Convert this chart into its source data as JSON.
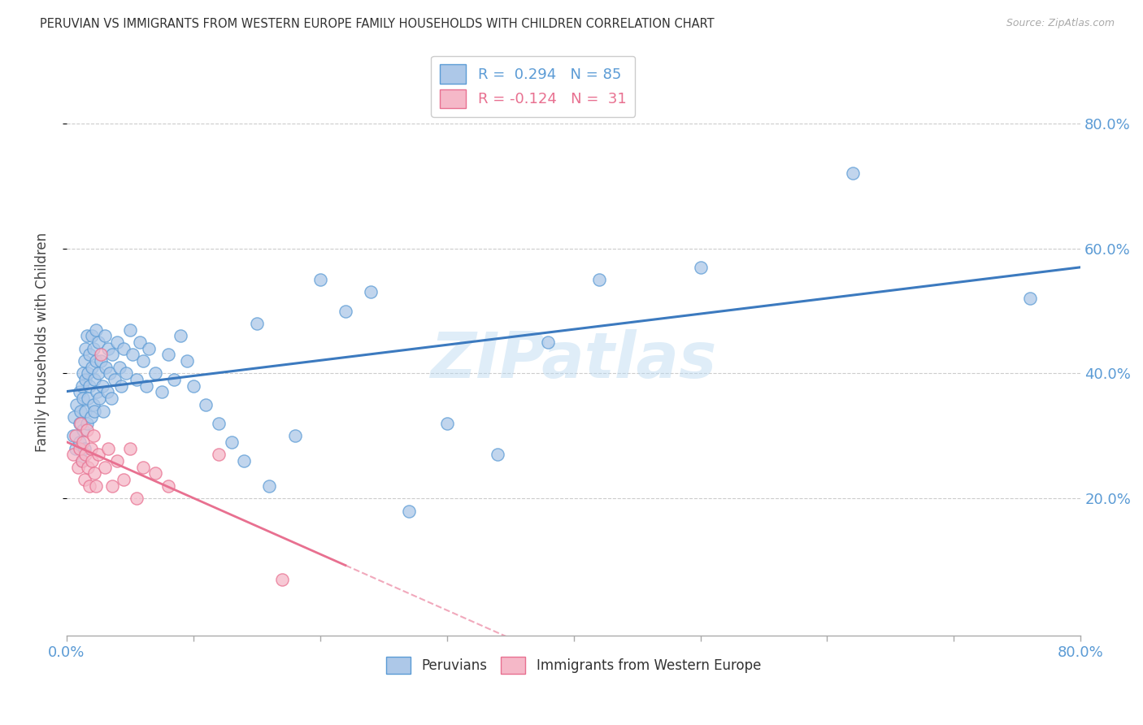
{
  "title": "PERUVIAN VS IMMIGRANTS FROM WESTERN EUROPE FAMILY HOUSEHOLDS WITH CHILDREN CORRELATION CHART",
  "source": "Source: ZipAtlas.com",
  "ylabel": "Family Households with Children",
  "xlim": [
    0,
    0.8
  ],
  "ylim": [
    -0.02,
    0.92
  ],
  "yticks": [
    0.2,
    0.4,
    0.6,
    0.8
  ],
  "ytick_labels": [
    "20.0%",
    "40.0%",
    "60.0%",
    "80.0%"
  ],
  "background_color": "#ffffff",
  "peru_color": "#adc8e8",
  "peru_edge": "#5b9bd5",
  "peru_line": "#3c7abf",
  "west_color": "#f5b8c8",
  "west_edge": "#e87090",
  "west_line": "#e87090",
  "peru_R": 0.294,
  "peru_N": 85,
  "west_R": -0.124,
  "west_N": 31,
  "peru_x": [
    0.005,
    0.006,
    0.007,
    0.008,
    0.01,
    0.01,
    0.01,
    0.011,
    0.012,
    0.012,
    0.013,
    0.013,
    0.013,
    0.014,
    0.014,
    0.015,
    0.015,
    0.015,
    0.016,
    0.016,
    0.017,
    0.017,
    0.018,
    0.018,
    0.019,
    0.02,
    0.02,
    0.021,
    0.021,
    0.022,
    0.022,
    0.023,
    0.023,
    0.024,
    0.025,
    0.025,
    0.026,
    0.027,
    0.028,
    0.029,
    0.03,
    0.031,
    0.032,
    0.033,
    0.034,
    0.035,
    0.036,
    0.038,
    0.04,
    0.042,
    0.043,
    0.045,
    0.047,
    0.05,
    0.052,
    0.055,
    0.058,
    0.06,
    0.063,
    0.065,
    0.07,
    0.075,
    0.08,
    0.085,
    0.09,
    0.095,
    0.1,
    0.11,
    0.12,
    0.13,
    0.14,
    0.15,
    0.16,
    0.18,
    0.2,
    0.22,
    0.24,
    0.27,
    0.3,
    0.34,
    0.38,
    0.42,
    0.5,
    0.62,
    0.76
  ],
  "peru_y": [
    0.3,
    0.33,
    0.28,
    0.35,
    0.32,
    0.37,
    0.29,
    0.34,
    0.38,
    0.26,
    0.4,
    0.36,
    0.31,
    0.42,
    0.28,
    0.44,
    0.39,
    0.34,
    0.46,
    0.32,
    0.4,
    0.36,
    0.43,
    0.38,
    0.33,
    0.46,
    0.41,
    0.35,
    0.44,
    0.39,
    0.34,
    0.47,
    0.42,
    0.37,
    0.45,
    0.4,
    0.36,
    0.42,
    0.38,
    0.34,
    0.46,
    0.41,
    0.37,
    0.44,
    0.4,
    0.36,
    0.43,
    0.39,
    0.45,
    0.41,
    0.38,
    0.44,
    0.4,
    0.47,
    0.43,
    0.39,
    0.45,
    0.42,
    0.38,
    0.44,
    0.4,
    0.37,
    0.43,
    0.39,
    0.46,
    0.42,
    0.38,
    0.35,
    0.32,
    0.29,
    0.26,
    0.48,
    0.22,
    0.3,
    0.55,
    0.5,
    0.53,
    0.18,
    0.32,
    0.27,
    0.45,
    0.55,
    0.57,
    0.72,
    0.52
  ],
  "west_x": [
    0.005,
    0.007,
    0.009,
    0.01,
    0.011,
    0.012,
    0.013,
    0.014,
    0.015,
    0.016,
    0.017,
    0.018,
    0.019,
    0.02,
    0.021,
    0.022,
    0.023,
    0.025,
    0.027,
    0.03,
    0.033,
    0.036,
    0.04,
    0.045,
    0.05,
    0.055,
    0.06,
    0.07,
    0.08,
    0.12,
    0.17
  ],
  "west_y": [
    0.27,
    0.3,
    0.25,
    0.28,
    0.32,
    0.26,
    0.29,
    0.23,
    0.27,
    0.31,
    0.25,
    0.22,
    0.28,
    0.26,
    0.3,
    0.24,
    0.22,
    0.27,
    0.43,
    0.25,
    0.28,
    0.22,
    0.26,
    0.23,
    0.28,
    0.2,
    0.25,
    0.24,
    0.22,
    0.27,
    0.07
  ]
}
